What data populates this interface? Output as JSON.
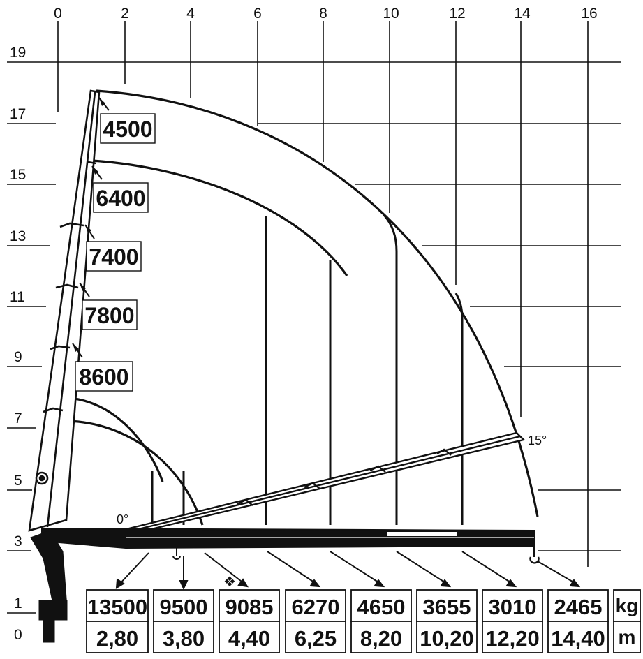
{
  "x_axis_ticks": [
    "0",
    "2",
    "4",
    "6",
    "8",
    "10",
    "12",
    "14",
    "16"
  ],
  "y_axis_ticks": [
    "19",
    "17",
    "15",
    "13",
    "11",
    "9",
    "7",
    "5",
    "3",
    "1",
    "0"
  ],
  "boom_capacities": [
    "4500",
    "6400",
    "7400",
    "7800",
    "8600"
  ],
  "angles": {
    "min": "0°",
    "max": "15°"
  },
  "load_table": {
    "loads": [
      "13500",
      "9500",
      "9085",
      "6270",
      "4650",
      "3655",
      "3010",
      "2465"
    ],
    "radii": [
      "2,80",
      "3,80",
      "4,40",
      "6,25",
      "8,20",
      "10,20",
      "12,20",
      "14,40"
    ],
    "load_unit": "kg",
    "radius_unit": "m",
    "marker": "❖"
  },
  "colors": {
    "ink": "#111111",
    "background": "#ffffff"
  }
}
